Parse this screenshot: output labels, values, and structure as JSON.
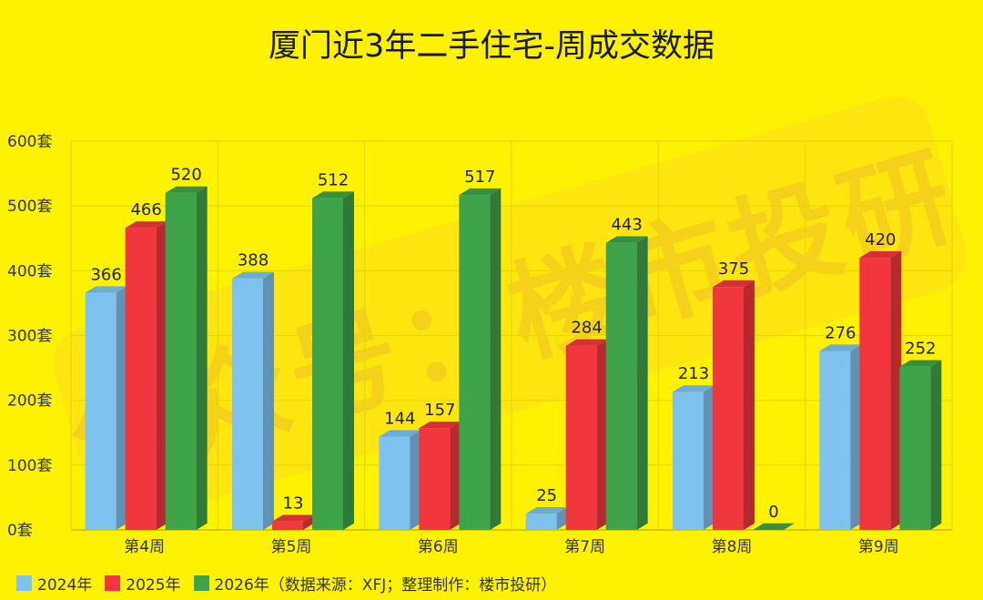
{
  "chart_data": {
    "type": "bar",
    "title": "厦门近3年二手住宅-周成交数据",
    "categories": [
      "第4周",
      "第5周",
      "第6周",
      "第7周",
      "第8周",
      "第9周"
    ],
    "series": [
      {
        "name": "2024年",
        "color": "#7EC3F0",
        "values": [
          366,
          388,
          144,
          25,
          213,
          276
        ]
      },
      {
        "name": "2025年",
        "color": "#F2363E",
        "values": [
          466,
          13,
          157,
          284,
          375,
          420
        ]
      },
      {
        "name": "2026年",
        "color": "#3FA34A",
        "values": [
          520,
          512,
          517,
          443,
          0,
          252
        ]
      }
    ],
    "yticks": [
      "0套",
      "100套",
      "200套",
      "300套",
      "400套",
      "500套",
      "600套"
    ],
    "ylim": [
      0,
      600
    ],
    "grid": true,
    "legend_position": "bottom-left",
    "legend_note": "（数据来源：XFJ；整理制作：楼市投研）"
  },
  "watermark_text": "公众号：楼市投研"
}
